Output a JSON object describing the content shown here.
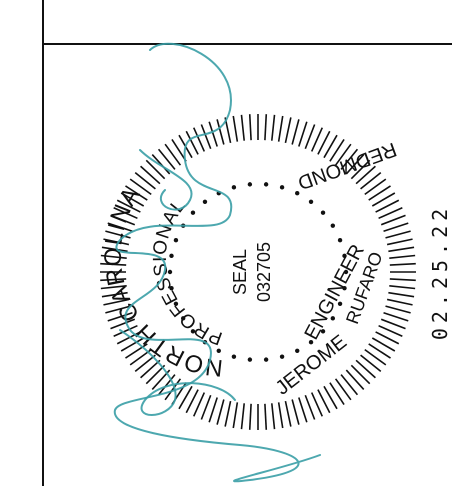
{
  "seal": {
    "outer_text_left": "NORTH CAROLINA",
    "outer_text_left_lower": "PROFESSIONAL",
    "inner_text_center_1": "SEAL",
    "inner_text_center_2": "032705",
    "engineer_label": "ENGINEER",
    "name_first": "JEROME",
    "name_middle": "RUFARO",
    "name_last": "REDMOND",
    "colors": {
      "ink": "#111111",
      "signature": "#3a9fa6"
    }
  },
  "date_stamp": "02.25.22",
  "signature": {
    "icon": "handwritten-signature"
  }
}
